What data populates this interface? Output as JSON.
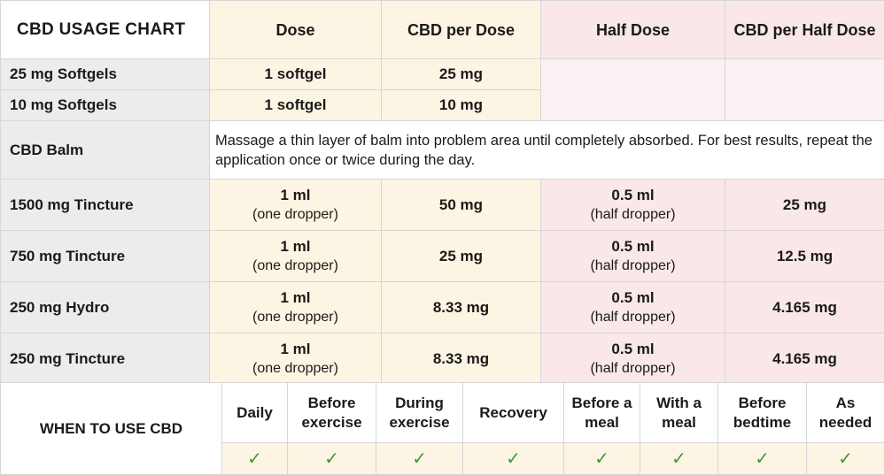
{
  "headers": {
    "title": "CBD USAGE CHART",
    "dose": "Dose",
    "cbd_per_dose": "CBD per Dose",
    "half_dose": "Half Dose",
    "cbd_per_half_dose": "CBD per Half Dose"
  },
  "softgels": [
    {
      "product": "25 mg Softgels",
      "dose": "1 softgel",
      "cbd": "25 mg"
    },
    {
      "product": "10 mg Softgels",
      "dose": "1 softgel",
      "cbd": "10 mg"
    }
  ],
  "balm": {
    "product": "CBD Balm",
    "instructions_line1": "Massage a thin layer of balm into problem area until completely absorbed. For best results, repeat the",
    "instructions_line2": "application once or twice during the day."
  },
  "tinctures": [
    {
      "product": "1500 mg Tincture",
      "dose": "1 ml",
      "dose_note": "(one dropper)",
      "cbd": "50 mg",
      "half": "0.5 ml",
      "half_note": "(half dropper)",
      "cbd_half": "25 mg"
    },
    {
      "product": "750 mg Tincture",
      "dose": "1 ml",
      "dose_note": "(one dropper)",
      "cbd": "25 mg",
      "half": "0.5 ml",
      "half_note": "(half dropper)",
      "cbd_half": "12.5 mg"
    },
    {
      "product": "250 mg Hydro",
      "dose": "1 ml",
      "dose_note": "(one dropper)",
      "cbd": "8.33 mg",
      "half": "0.5 ml",
      "half_note": "(half dropper)",
      "cbd_half": "4.165 mg"
    },
    {
      "product": "250 mg Tincture",
      "dose": "1 ml",
      "dose_note": "(one dropper)",
      "cbd": "8.33 mg",
      "half": "0.5 ml",
      "half_note": "(half dropper)",
      "cbd_half": "4.165 mg"
    }
  ],
  "when": {
    "label": "WHEN TO USE CBD",
    "columns": [
      {
        "line1": "Daily",
        "line2": ""
      },
      {
        "line1": "Before",
        "line2": "exercise"
      },
      {
        "line1": "During",
        "line2": "exercise"
      },
      {
        "line1": "Recovery",
        "line2": ""
      },
      {
        "line1": "Before a",
        "line2": "meal"
      },
      {
        "line1": "With a",
        "line2": "meal"
      },
      {
        "line1": "Before",
        "line2": "bedtime"
      },
      {
        "line1": "As",
        "line2": "needed"
      }
    ],
    "check": "✓"
  },
  "colors": {
    "dose_bg": "#fdf5e3",
    "half_bg": "#f9e7ea",
    "label_bg": "#ececec",
    "check": "#3c9a3c"
  }
}
